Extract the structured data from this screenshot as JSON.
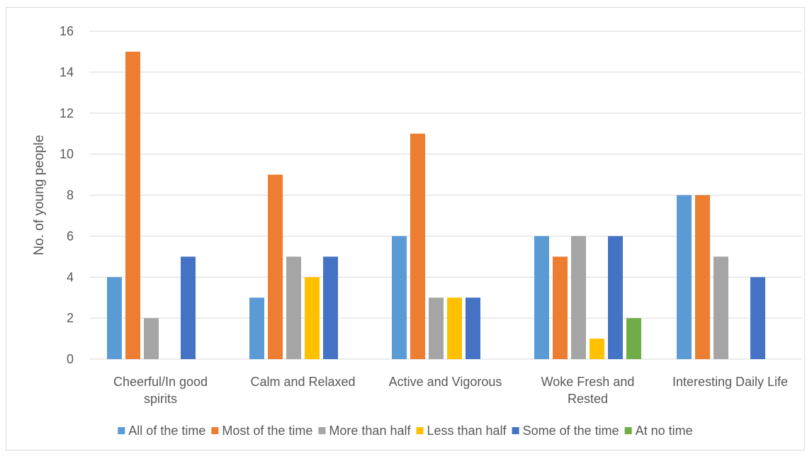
{
  "chart_data": {
    "type": "bar",
    "title": "",
    "xlabel": "",
    "ylabel": "No. of young people",
    "ylim": [
      0,
      16
    ],
    "ytick_step": 2,
    "grid": true,
    "legend_position": "bottom",
    "categories": [
      [
        "Cheerful/In good",
        "spirits"
      ],
      [
        "Calm and Relaxed"
      ],
      [
        "Active and Vigorous"
      ],
      [
        "Woke Fresh and",
        "Rested"
      ],
      [
        "Interesting Daily Life"
      ]
    ],
    "series": [
      {
        "name": "All of the time",
        "color": "#5b9bd5",
        "values": [
          4,
          3,
          6,
          6,
          8
        ]
      },
      {
        "name": "Most of the time",
        "color": "#ed7d31",
        "values": [
          15,
          9,
          11,
          5,
          8
        ]
      },
      {
        "name": "More than half",
        "color": "#a5a5a5",
        "values": [
          2,
          5,
          3,
          6,
          5
        ]
      },
      {
        "name": "Less than half",
        "color": "#ffc000",
        "values": [
          0,
          4,
          3,
          1,
          0
        ]
      },
      {
        "name": "Some of the time",
        "color": "#4472c4",
        "values": [
          5,
          5,
          3,
          6,
          4
        ]
      },
      {
        "name": "At no time",
        "color": "#70ad47",
        "values": [
          0,
          0,
          0,
          2,
          0
        ]
      }
    ]
  }
}
